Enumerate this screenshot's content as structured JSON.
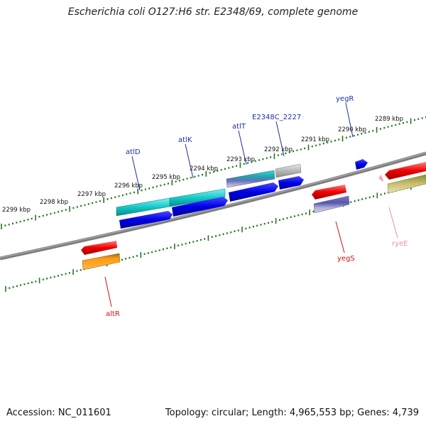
{
  "title": "Escherichia coli O127:H6 str. E2348/69, complete genome",
  "footer": {
    "accession": "Accession: NC_011601",
    "summary": "Topology: circular; Length: 4,965,553 bp; Genes: 4,739"
  },
  "kbp_labels": [
    "2299 kbp",
    "2298 kbp",
    "2297 kbp",
    "2296 kbp",
    "2295 kbp",
    "2294 kbp",
    "2293 kbp",
    "2292 kbp",
    "2291 kbp",
    "2290 kbp",
    "2289 kbp"
  ],
  "gene_labels": [
    "atlD",
    "atlK",
    "atlT",
    "E2348C_2227",
    "yegR",
    "altR",
    "yegS",
    "ryeE"
  ],
  "colors": {
    "backbone": "#888888",
    "ticks": "#1e7a1e",
    "label_blue": "#1c2fa8",
    "label_red": "#cc1111",
    "label_pink": "#f08ab0"
  }
}
